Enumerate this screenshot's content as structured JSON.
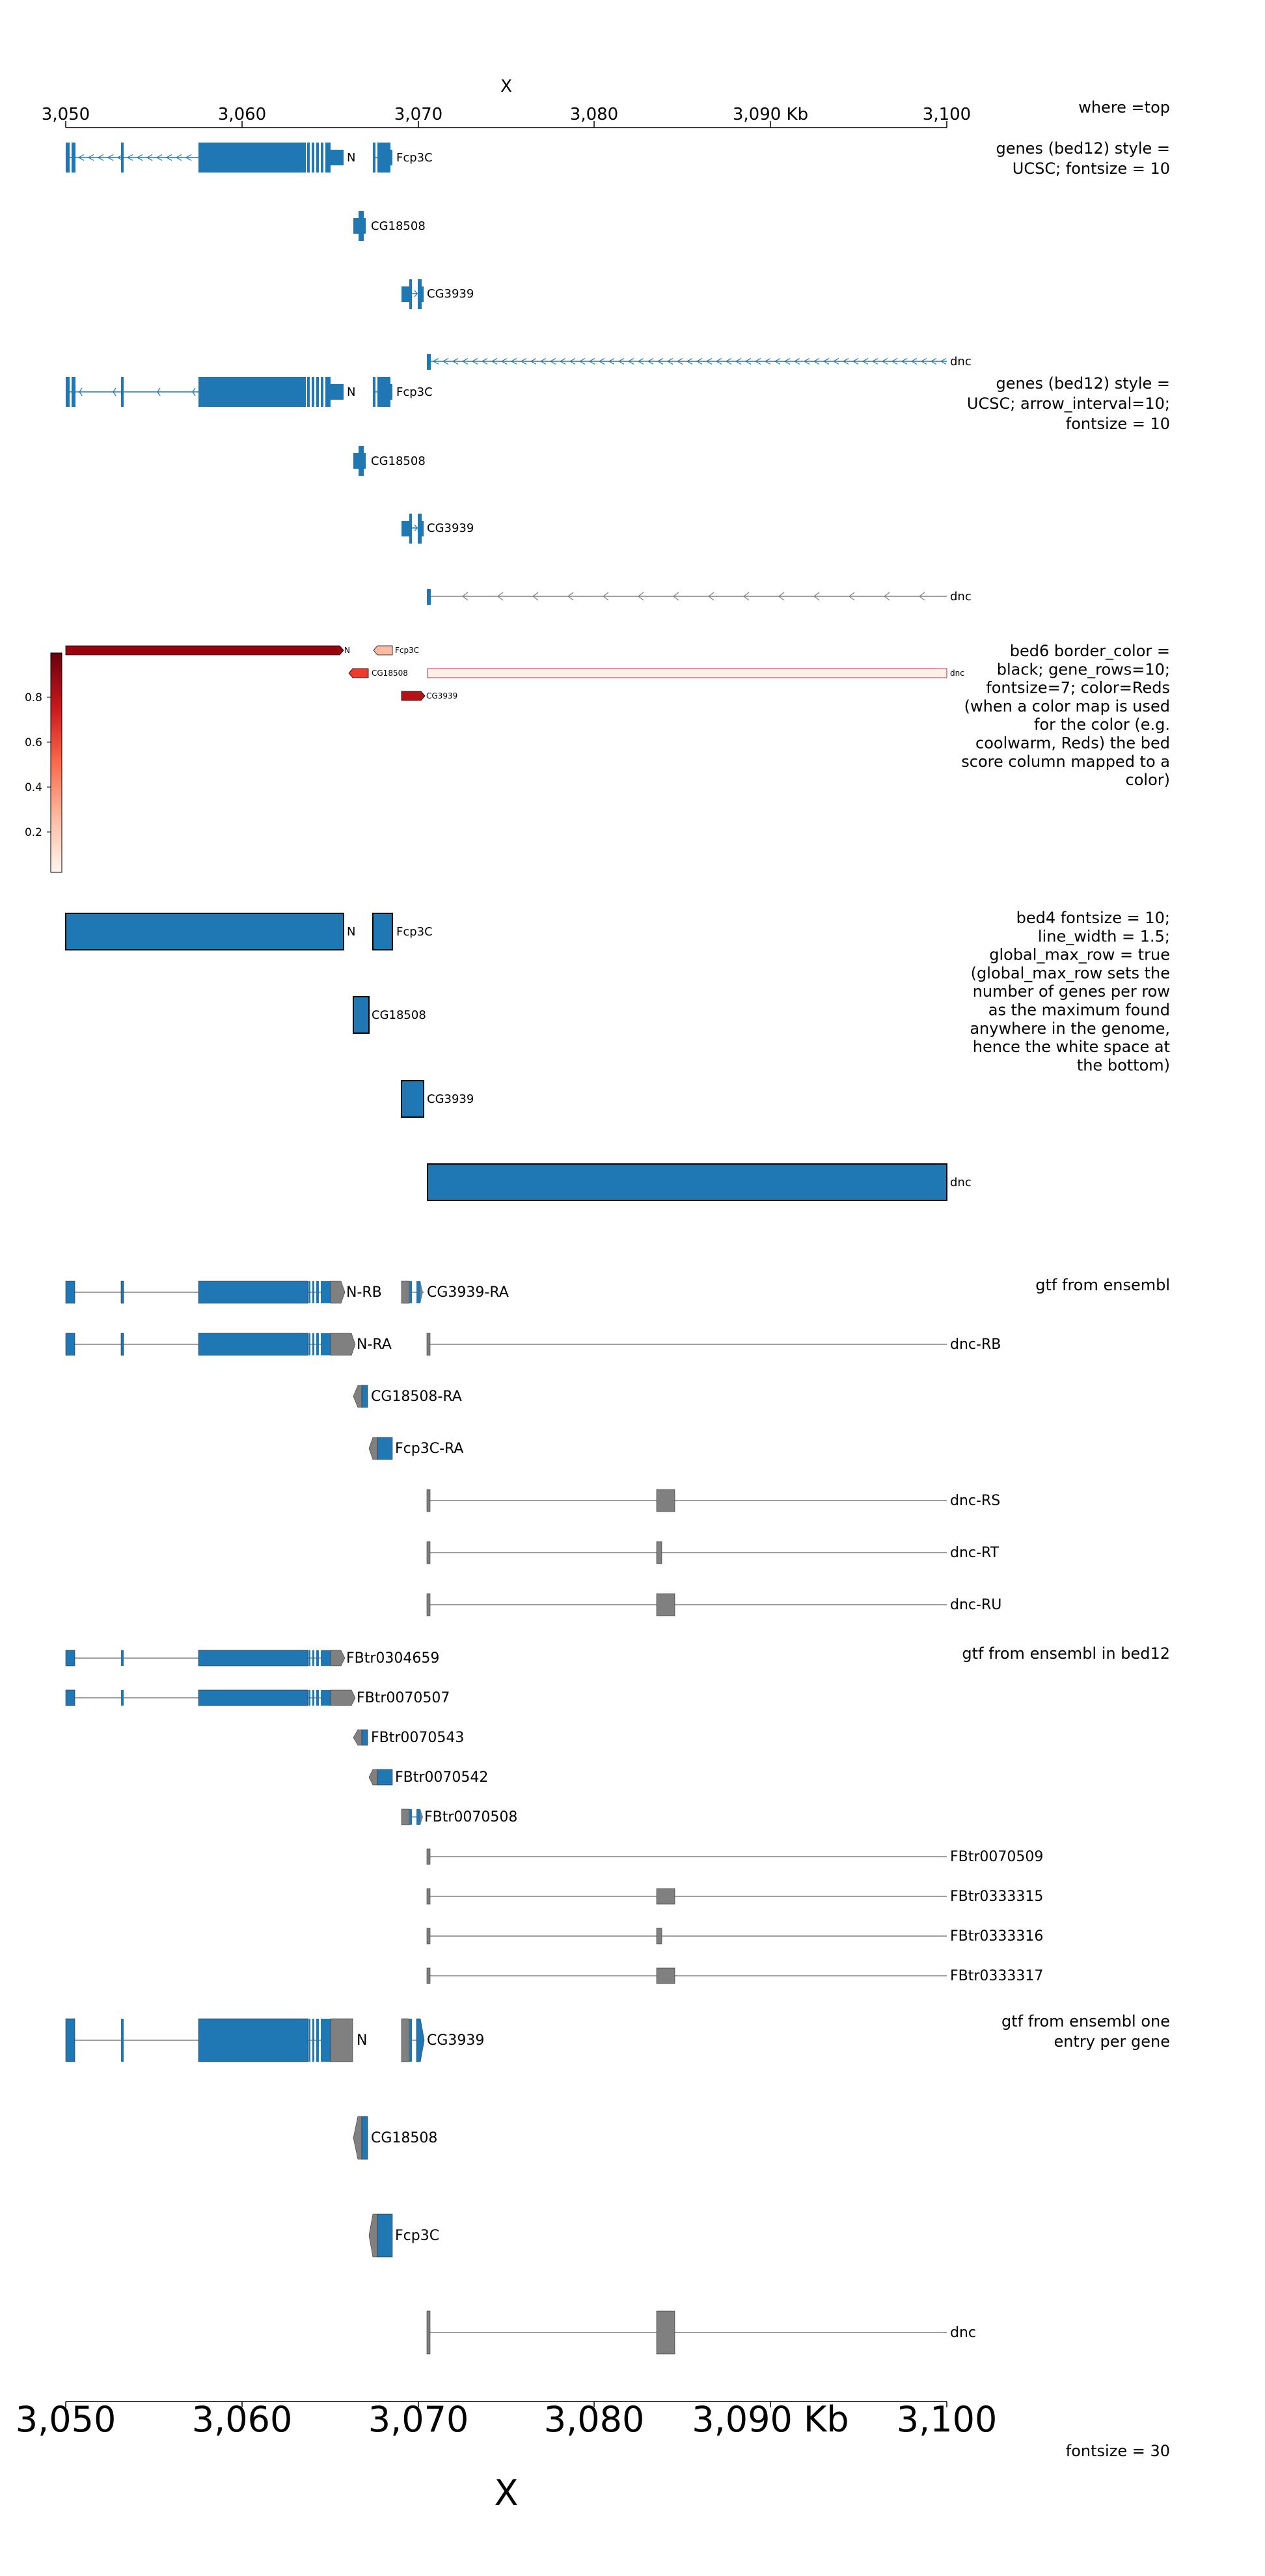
{
  "axis_top": {
    "title": "X",
    "ticks": [
      "3,050",
      "3,060",
      "3,070",
      "3,080",
      "3,090 Kb",
      "3,100"
    ],
    "tick_values": [
      3050,
      3060,
      3070,
      3080,
      3090,
      3100
    ],
    "track_label": "where =top"
  },
  "axis_bottom": {
    "title": "X",
    "ticks": [
      "3,050",
      "3,060",
      "3,070",
      "3,080",
      "3,090 Kb",
      "3,100"
    ],
    "track_label": "fontsize = 30"
  },
  "colors": {
    "blue": "#1f77b4",
    "gray": "#808080",
    "dark_red": "#99000d",
    "light_red": "#fcbba1",
    "mid_red": "#ef3b2c",
    "faint_red": "#fff5f0"
  },
  "tracks": [
    {
      "label": "genes (bed12) style = UCSC; fontsize = 10",
      "genes": [
        {
          "name": "N",
          "start": 3050.0,
          "end": 3066.1,
          "strand": "-"
        },
        {
          "name": "Fcp3C",
          "start": 3067.3,
          "end": 3068.4,
          "strand": "-"
        },
        {
          "name": "CG18508",
          "start": 3066.2,
          "end": 3066.9,
          "strand": "-"
        },
        {
          "name": "CG3939",
          "start": 3069.2,
          "end": 3070.3,
          "strand": "+"
        },
        {
          "name": "dnc",
          "start": 3070.5,
          "end": 3100.0,
          "strand": "-"
        }
      ]
    },
    {
      "label": "genes (bed12) style = UCSC; arrow_interval=10; fontsize = 10",
      "genes": [
        {
          "name": "N",
          "start": 3050.0,
          "end": 3066.1,
          "strand": "-"
        },
        {
          "name": "Fcp3C",
          "start": 3067.3,
          "end": 3068.4,
          "strand": "-"
        },
        {
          "name": "CG18508",
          "start": 3066.2,
          "end": 3066.9,
          "strand": "-"
        },
        {
          "name": "CG3939",
          "start": 3069.2,
          "end": 3070.3,
          "strand": "+"
        },
        {
          "name": "dnc",
          "start": 3070.5,
          "end": 3100.0,
          "strand": "-"
        }
      ]
    },
    {
      "label": "bed6 border_color = black; gene_rows=10; fontsize=7; color=Reds (when a color map is used for the color (e.g. coolwarm, Reds) the bed score column mapped to a color)",
      "colorbar_ticks": [
        "0.8",
        "0.6",
        "0.4",
        "0.2"
      ],
      "colorbar_values": [
        0.8,
        0.6,
        0.4,
        0.2
      ],
      "genes": [
        {
          "name": "N",
          "start": 3050.0,
          "end": 3065.8,
          "score": 0.95
        },
        {
          "name": "Fcp3C",
          "start": 3067.2,
          "end": 3068.4,
          "score": 0.3
        },
        {
          "name": "CG18508",
          "start": 3066.2,
          "end": 3067.1,
          "score": 0.6
        },
        {
          "name": "dnc",
          "start": 3070.5,
          "end": 3100.0,
          "score": 0.03
        },
        {
          "name": "CG3939",
          "start": 3069.2,
          "end": 3070.3,
          "score": 0.9
        }
      ]
    },
    {
      "label": "bed4 fontsize = 10; line_width = 1.5; global_max_row = true (global_max_row sets the number of genes per row as the maximum found anywhere in the genome, hence the white space at the bottom)",
      "genes": [
        {
          "name": "N",
          "start": 3050.0,
          "end": 3065.8
        },
        {
          "name": "Fcp3C",
          "start": 3067.3,
          "end": 3068.4
        },
        {
          "name": "CG18508",
          "start": 3066.2,
          "end": 3067.1
        },
        {
          "name": "CG3939",
          "start": 3069.2,
          "end": 3070.3
        },
        {
          "name": "dnc",
          "start": 3070.5,
          "end": 3100.0
        }
      ]
    },
    {
      "label": "gtf from ensembl",
      "genes": [
        "N-RB",
        "CG3939-RA",
        "N-RA",
        "dnc-RB",
        "CG18508-RA",
        "Fcp3C-RA",
        "dnc-RS",
        "dnc-RT",
        "dnc-RU"
      ]
    },
    {
      "label": "gtf from ensembl in bed12",
      "genes": [
        "FBtr0304659",
        "FBtr0070507",
        "FBtr0070543",
        "FBtr0070542",
        "FBtr0070508",
        "FBtr0070509",
        "FBtr0333315",
        "FBtr0333316",
        "FBtr0333317"
      ]
    },
    {
      "label": "gtf from ensembl one entry per gene",
      "genes": [
        "N",
        "CG3939",
        "CG18508",
        "Fcp3C",
        "dnc"
      ]
    }
  ]
}
